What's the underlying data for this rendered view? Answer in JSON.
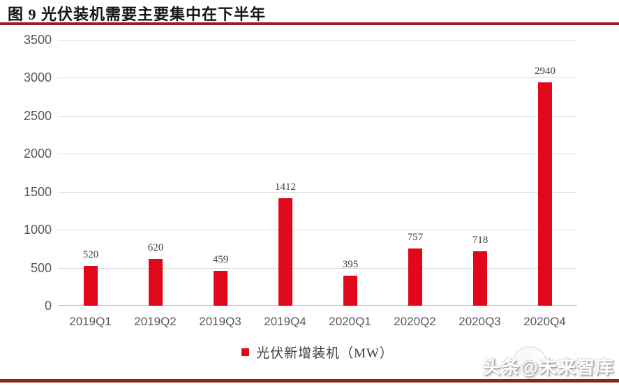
{
  "figure_title": "图 9 光伏装机需要主要集中在下半年",
  "chart_data": {
    "type": "bar",
    "title": "图 9 光伏装机需要主要集中在下半年",
    "categories": [
      "2019Q1",
      "2019Q2",
      "2019Q3",
      "2019Q4",
      "2020Q1",
      "2020Q2",
      "2020Q3",
      "2020Q4"
    ],
    "series": [
      {
        "name": "光伏新增装机（MW）",
        "values": [
          520,
          620,
          459,
          1412,
          395,
          757,
          718,
          2940
        ]
      }
    ],
    "xlabel": "",
    "ylabel": "",
    "ylim": [
      0,
      3500
    ],
    "yticks": [
      0,
      500,
      1000,
      1500,
      2000,
      2500,
      3000,
      3500
    ],
    "grid": true,
    "value_labels_shown": true,
    "legend_position": "bottom",
    "bar_color": "#e2081c"
  },
  "legend": {
    "label": "光伏新增装机（MW）",
    "swatch_color": "#e2081c"
  },
  "watermark": {
    "text": "头条@未来智库"
  },
  "colors": {
    "bar": "#e2081c",
    "title_rule": "#9a1b2c",
    "bottom_rule": "#8e231c",
    "gridline": "#dcdcdc",
    "axis_text": "#575757",
    "value_text": "#3d3d3d"
  }
}
